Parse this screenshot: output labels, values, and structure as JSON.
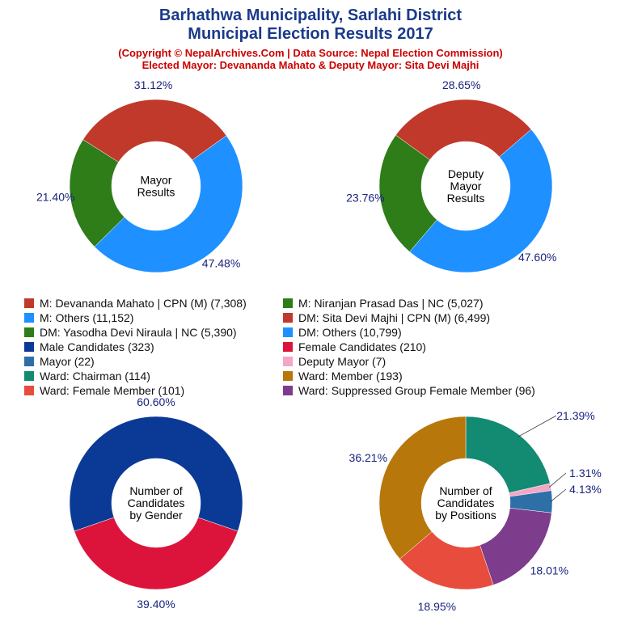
{
  "title_line1": "Barhathwa Municipality, Sarlahi District",
  "title_line2": "Municipal Election Results 2017",
  "subtitle_line1": "(Copyright © NepalArchives.Com | Data Source: Nepal Election Commission)",
  "subtitle_line2": "Elected Mayor: Devananda Mahato & Deputy Mayor: Sita Devi Majhi",
  "legend": [
    {
      "label": "M: Devananda Mahato | CPN (M) (7,308)",
      "color": "#c0392b"
    },
    {
      "label": "M: Niranjan Prasad Das | NC (5,027)",
      "color": "#2e7d18"
    },
    {
      "label": "M: Others (11,152)",
      "color": "#1e90ff"
    },
    {
      "label": "DM: Sita Devi Majhi | CPN (M) (6,499)",
      "color": "#c0392b"
    },
    {
      "label": "DM: Yasodha Devi Niraula | NC (5,390)",
      "color": "#2e7d18"
    },
    {
      "label": "DM: Others (10,799)",
      "color": "#1e90ff"
    },
    {
      "label": "Male Candidates (323)",
      "color": "#0b3a96"
    },
    {
      "label": "Female Candidates (210)",
      "color": "#dc143c"
    },
    {
      "label": "Mayor (22)",
      "color": "#2e6fa8"
    },
    {
      "label": "Deputy Mayor (7)",
      "color": "#f4a6c6"
    },
    {
      "label": "Ward: Chairman (114)",
      "color": "#138a72"
    },
    {
      "label": "Ward: Member (193)",
      "color": "#b8770b"
    },
    {
      "label": "Ward: Female Member (101)",
      "color": "#e74c3c"
    },
    {
      "label": "Ward: Suppressed Group Female Member (96)",
      "color": "#7d3c8c"
    }
  ],
  "chart_data": [
    {
      "type": "pie",
      "center_label": [
        "Mayor",
        "Results"
      ],
      "slices": [
        {
          "name": "M: Devananda Mahato | CPN (M)",
          "value": 7308,
          "percent_label": "31.12%",
          "color": "#c0392b"
        },
        {
          "name": "M: Others",
          "value": 11152,
          "percent_label": "47.48%",
          "color": "#1e90ff"
        },
        {
          "name": "M: Niranjan Prasad Das | NC",
          "value": 5027,
          "percent_label": "21.40%",
          "color": "#2e7d18"
        }
      ]
    },
    {
      "type": "pie",
      "center_label": [
        "Deputy",
        "Mayor",
        "Results"
      ],
      "slices": [
        {
          "name": "DM: Sita Devi Majhi | CPN (M)",
          "value": 6499,
          "percent_label": "28.65%",
          "color": "#c0392b"
        },
        {
          "name": "DM: Others",
          "value": 10799,
          "percent_label": "47.60%",
          "color": "#1e90ff"
        },
        {
          "name": "DM: Yasodha Devi Niraula | NC",
          "value": 5390,
          "percent_label": "23.76%",
          "color": "#2e7d18"
        }
      ]
    },
    {
      "type": "pie",
      "center_label": [
        "Number of",
        "Candidates",
        "by Gender"
      ],
      "slices": [
        {
          "name": "Male Candidates",
          "value": 323,
          "percent_label": "60.60%",
          "color": "#0b3a96"
        },
        {
          "name": "Female Candidates",
          "value": 210,
          "percent_label": "39.40%",
          "color": "#dc143c"
        }
      ]
    },
    {
      "type": "pie",
      "center_label": [
        "Number of",
        "Candidates",
        "by Positions"
      ],
      "slices": [
        {
          "name": "Ward: Chairman",
          "value": 114,
          "percent_label": "21.39%",
          "color": "#138a72"
        },
        {
          "name": "Deputy Mayor",
          "value": 7,
          "percent_label": "1.31%",
          "color": "#f4a6c6"
        },
        {
          "name": "Mayor",
          "value": 22,
          "percent_label": "4.13%",
          "color": "#2e6fa8"
        },
        {
          "name": "Ward: Suppressed Group Female Member",
          "value": 96,
          "percent_label": "18.01%",
          "color": "#7d3c8c"
        },
        {
          "name": "Ward: Female Member",
          "value": 101,
          "percent_label": "18.95%",
          "color": "#e74c3c"
        },
        {
          "name": "Ward: Member",
          "value": 193,
          "percent_label": "36.21%",
          "color": "#b8770b"
        }
      ]
    }
  ]
}
